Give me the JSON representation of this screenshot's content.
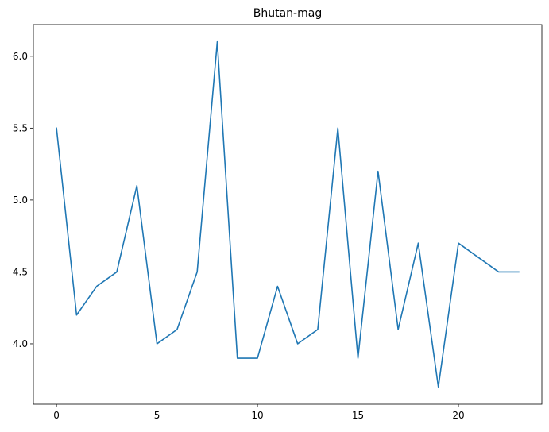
{
  "chart_data": {
    "type": "line",
    "title": "Bhutan-mag",
    "xlabel": "",
    "ylabel": "",
    "x": [
      0,
      1,
      2,
      3,
      4,
      5,
      6,
      7,
      8,
      9,
      10,
      11,
      12,
      13,
      14,
      15,
      16,
      17,
      18,
      19,
      20,
      21,
      22,
      23
    ],
    "series": [
      {
        "values": [
          5.5,
          4.2,
          4.4,
          4.5,
          5.1,
          4.0,
          4.1,
          4.5,
          6.1,
          3.9,
          3.9,
          4.4,
          4.0,
          4.1,
          5.5,
          3.9,
          5.2,
          4.1,
          4.7,
          3.7,
          4.7,
          4.6,
          4.5,
          4.5
        ],
        "color": "#1f77b4"
      }
    ],
    "xlim": [
      -1.15,
      24.15
    ],
    "ylim": [
      3.58,
      6.22
    ],
    "xticks": [
      0,
      5,
      10,
      15,
      20
    ],
    "yticks": [
      4.0,
      4.5,
      5.0,
      5.5,
      6.0
    ],
    "xtick_labels": [
      "0",
      "5",
      "10",
      "15",
      "20"
    ],
    "ytick_labels": [
      "4.0",
      "4.5",
      "5.0",
      "5.5",
      "6.0"
    ],
    "grid": false,
    "legend": "none"
  }
}
